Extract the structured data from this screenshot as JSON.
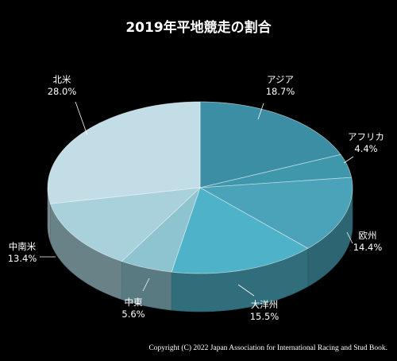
{
  "chart_data": {
    "type": "pie",
    "title": "2019年平地競走の割合",
    "slices": [
      {
        "label": "アジア",
        "value": 18.7,
        "value_label": "18.7%",
        "color": "#3b8ea3"
      },
      {
        "label": "アフリカ",
        "value": 4.4,
        "value_label": "4.4%",
        "color": "#3e97ab"
      },
      {
        "label": "欧州",
        "value": 14.4,
        "value_label": "14.4%",
        "color": "#4aa3b8"
      },
      {
        "label": "大洋州",
        "value": 15.5,
        "value_label": "15.5%",
        "color": "#4eb2c8"
      },
      {
        "label": "中東",
        "value": 5.6,
        "value_label": "5.6%",
        "color": "#8ec4cf"
      },
      {
        "label": "中南米",
        "value": 13.4,
        "value_label": "13.4%",
        "color": "#a9d1db"
      },
      {
        "label": "北米",
        "value": 28.0,
        "value_label": "28.0%",
        "color": "#c3dde6"
      }
    ],
    "start": "12 o'clock",
    "direction": "clockwise",
    "style": "3d-tilted",
    "background": "#000000"
  },
  "footer": {
    "copyright": "Copyright (C) 2022 Japan Association for International Racing and Stud Book."
  }
}
